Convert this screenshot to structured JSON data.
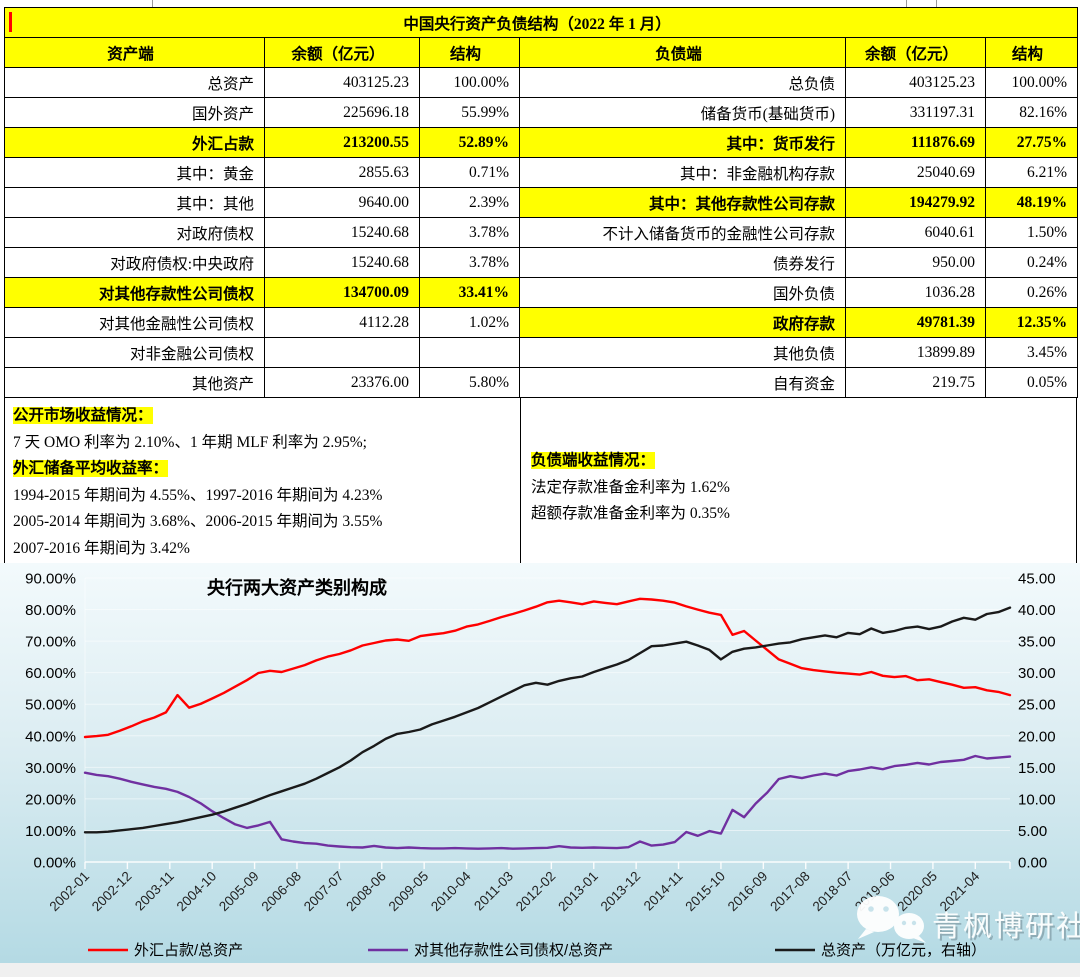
{
  "table": {
    "title": "中国央行资产负债结构（2022 年 1 月）",
    "headers": [
      "资产端",
      "余额（亿元）",
      "结构",
      "负债端",
      "余额（亿元）",
      "结构"
    ],
    "rows": [
      {
        "asset": [
          "总资产",
          "403125.23",
          "100.00%"
        ],
        "asset_hl": false,
        "liab": [
          "总负债",
          "403125.23",
          "100.00%"
        ],
        "liab_hl": false
      },
      {
        "asset": [
          "国外资产",
          "225696.18",
          "55.99%"
        ],
        "asset_hl": false,
        "liab": [
          "储备货币(基础货币)",
          "331197.31",
          "82.16%"
        ],
        "liab_hl": false
      },
      {
        "asset": [
          "外汇占款",
          "213200.55",
          "52.89%"
        ],
        "asset_hl": true,
        "liab": [
          "其中：货币发行",
          "111876.69",
          "27.75%"
        ],
        "liab_hl": true
      },
      {
        "asset": [
          "其中：黄金",
          "2855.63",
          "0.71%"
        ],
        "asset_hl": false,
        "liab": [
          "其中：非金融机构存款",
          "25040.69",
          "6.21%"
        ],
        "liab_hl": false
      },
      {
        "asset": [
          "其中：其他",
          "9640.00",
          "2.39%"
        ],
        "asset_hl": false,
        "liab": [
          "其中：其他存款性公司存款",
          "194279.92",
          "48.19%"
        ],
        "liab_hl": true
      },
      {
        "asset": [
          "对政府债权",
          "15240.68",
          "3.78%"
        ],
        "asset_hl": false,
        "liab": [
          "不计入储备货币的金融性公司存款",
          "6040.61",
          "1.50%"
        ],
        "liab_hl": false
      },
      {
        "asset": [
          "对政府债权:中央政府",
          "15240.68",
          "3.78%"
        ],
        "asset_hl": false,
        "liab": [
          "债券发行",
          "950.00",
          "0.24%"
        ],
        "liab_hl": false
      },
      {
        "asset": [
          "对其他存款性公司债权",
          "134700.09",
          "33.41%"
        ],
        "asset_hl": true,
        "liab": [
          "国外负债",
          "1036.28",
          "0.26%"
        ],
        "liab_hl": false
      },
      {
        "asset": [
          "对其他金融性公司债权",
          "4112.28",
          "1.02%"
        ],
        "asset_hl": false,
        "liab": [
          "政府存款",
          "49781.39",
          "12.35%"
        ],
        "liab_hl": true
      },
      {
        "asset": [
          "对非金融公司债权",
          "",
          ""
        ],
        "asset_hl": false,
        "liab": [
          "其他负债",
          "13899.89",
          "3.45%"
        ],
        "liab_hl": false
      },
      {
        "asset": [
          "其他资产",
          "23376.00",
          "5.80%"
        ],
        "asset_hl": false,
        "liab": [
          "自有资金",
          "219.75",
          "0.05%"
        ],
        "liab_hl": false
      }
    ]
  },
  "notes_left": {
    "heading1": "公开市场收益情况：",
    "line1": "7 天 OMO 利率为 2.10%、1 年期 MLF 利率为 2.95%;",
    "heading2": "外汇储备平均收益率：",
    "line2": "1994-2015 年期间为 4.55%、1997-2016 年期间为 4.23%",
    "line3": "2005-2014 年期间为 3.68%、2006-2015 年期间为 3.55%",
    "line4": "2007-2016 年期间为 3.42%"
  },
  "notes_right": {
    "heading": "负债端收益情况：",
    "line1": "法定存款准备金利率为 1.62%",
    "line2": "超额存款准备金利率为 0.35%"
  },
  "watermark": {
    "text": "青枫博研社",
    "icon": "wechat-icon"
  },
  "colors": {
    "highlight": "#ffff00",
    "highlight_text": "#ff0000",
    "table_border": "#000000",
    "series_red": "#ff0000",
    "series_purple": "#7030a0",
    "series_black": "#1a1a1a",
    "chart_bg_top": "#f3fafc",
    "chart_bg_mid": "#dcedf2",
    "chart_bg_bottom": "#b4dae4"
  },
  "chart_data": {
    "type": "line",
    "title": "央行两大资产类别构成",
    "x_start": "2002-01",
    "x_end": "2022-01",
    "sample_interval_months": 3,
    "points_per_series": 81,
    "x_ticks_shown": [
      "2002-01",
      "2002-12",
      "2003-11",
      "2004-10",
      "2005-09",
      "2006-08",
      "2007-07",
      "2008-06",
      "2009-05",
      "2010-04",
      "2011-03",
      "2012-02",
      "2013-01",
      "2013-12",
      "2014-11",
      "2015-10",
      "2016-09",
      "2017-08",
      "2018-07",
      "2019-06",
      "2020-05",
      "2021-04"
    ],
    "x_tick_interval_months": 11,
    "ylim_left": [
      0,
      90
    ],
    "y_left_step": 10,
    "y_left_format": "0.00%",
    "ylim_right": [
      0,
      45
    ],
    "y_right_step": 5,
    "y_right_format": "0.00",
    "grid": true,
    "legend_position": "bottom",
    "series": [
      {
        "name": "外汇占款/总资产",
        "axis": "left",
        "unit": "%",
        "color": "#ff0000",
        "values": [
          39.6,
          39.9,
          40.3,
          41.6,
          43.0,
          44.6,
          45.8,
          47.4,
          52.9,
          48.9,
          50.1,
          51.8,
          53.6,
          55.6,
          57.6,
          59.9,
          60.6,
          60.2,
          61.3,
          62.4,
          63.9,
          65.1,
          65.9,
          67.1,
          68.6,
          69.4,
          70.2,
          70.5,
          70.1,
          71.6,
          72.1,
          72.5,
          73.3,
          74.6,
          75.3,
          76.4,
          77.6,
          78.6,
          79.7,
          80.9,
          82.3,
          82.8,
          82.3,
          81.7,
          82.6,
          82.1,
          81.7,
          82.6,
          83.4,
          83.2,
          82.8,
          82.2,
          81.0,
          80.0,
          79.0,
          78.3,
          72.0,
          73.2,
          70.2,
          67.2,
          64.2,
          62.8,
          61.4,
          60.8,
          60.4,
          60.0,
          59.7,
          59.4,
          60.2,
          59.0,
          58.6,
          58.9,
          57.6,
          57.9,
          57.0,
          56.2,
          55.2,
          55.4,
          54.4,
          53.9,
          52.89
        ]
      },
      {
        "name": "对其他存款性公司债权/总资产",
        "axis": "left",
        "unit": "%",
        "color": "#7030a0",
        "values": [
          28.3,
          27.6,
          27.2,
          26.4,
          25.4,
          24.6,
          23.8,
          23.2,
          22.2,
          20.6,
          18.6,
          16.1,
          13.9,
          11.9,
          10.8,
          11.6,
          12.7,
          7.2,
          6.5,
          6.0,
          5.8,
          5.2,
          4.9,
          4.7,
          4.6,
          5.1,
          4.6,
          4.4,
          4.6,
          4.4,
          4.3,
          4.3,
          4.4,
          4.3,
          4.2,
          4.3,
          4.4,
          4.2,
          4.3,
          4.4,
          4.5,
          5.0,
          4.6,
          4.5,
          4.6,
          4.5,
          4.4,
          4.7,
          6.5,
          5.2,
          5.5,
          6.3,
          9.5,
          8.3,
          9.8,
          9.0,
          16.5,
          14.2,
          18.5,
          22.0,
          26.3,
          27.2,
          26.6,
          27.4,
          28.0,
          27.4,
          28.8,
          29.3,
          30.0,
          29.4,
          30.4,
          30.8,
          31.4,
          30.9,
          31.7,
          32.0,
          32.4,
          33.6,
          32.8,
          33.1,
          33.41
        ]
      },
      {
        "name": "总资产（万亿元，右轴）",
        "axis": "right",
        "unit": "万亿元",
        "color": "#1a1a1a",
        "values": [
          4.7,
          4.7,
          4.8,
          5.0,
          5.2,
          5.4,
          5.7,
          6.0,
          6.3,
          6.7,
          7.1,
          7.5,
          8.0,
          8.6,
          9.2,
          9.9,
          10.6,
          11.2,
          11.8,
          12.4,
          13.2,
          14.1,
          15.0,
          16.1,
          17.4,
          18.4,
          19.5,
          20.3,
          20.6,
          21.0,
          21.8,
          22.4,
          23.0,
          23.7,
          24.4,
          25.3,
          26.2,
          27.1,
          28.0,
          28.4,
          28.1,
          28.7,
          29.1,
          29.4,
          30.1,
          30.7,
          31.3,
          32.0,
          33.1,
          34.2,
          34.3,
          34.6,
          34.9,
          34.3,
          33.6,
          32.1,
          33.3,
          33.8,
          34.0,
          34.3,
          34.6,
          34.8,
          35.3,
          35.6,
          35.9,
          35.6,
          36.3,
          36.1,
          37.0,
          36.3,
          36.6,
          37.1,
          37.3,
          36.9,
          37.3,
          38.1,
          38.7,
          38.4,
          39.3,
          39.6,
          40.31
        ]
      }
    ]
  }
}
